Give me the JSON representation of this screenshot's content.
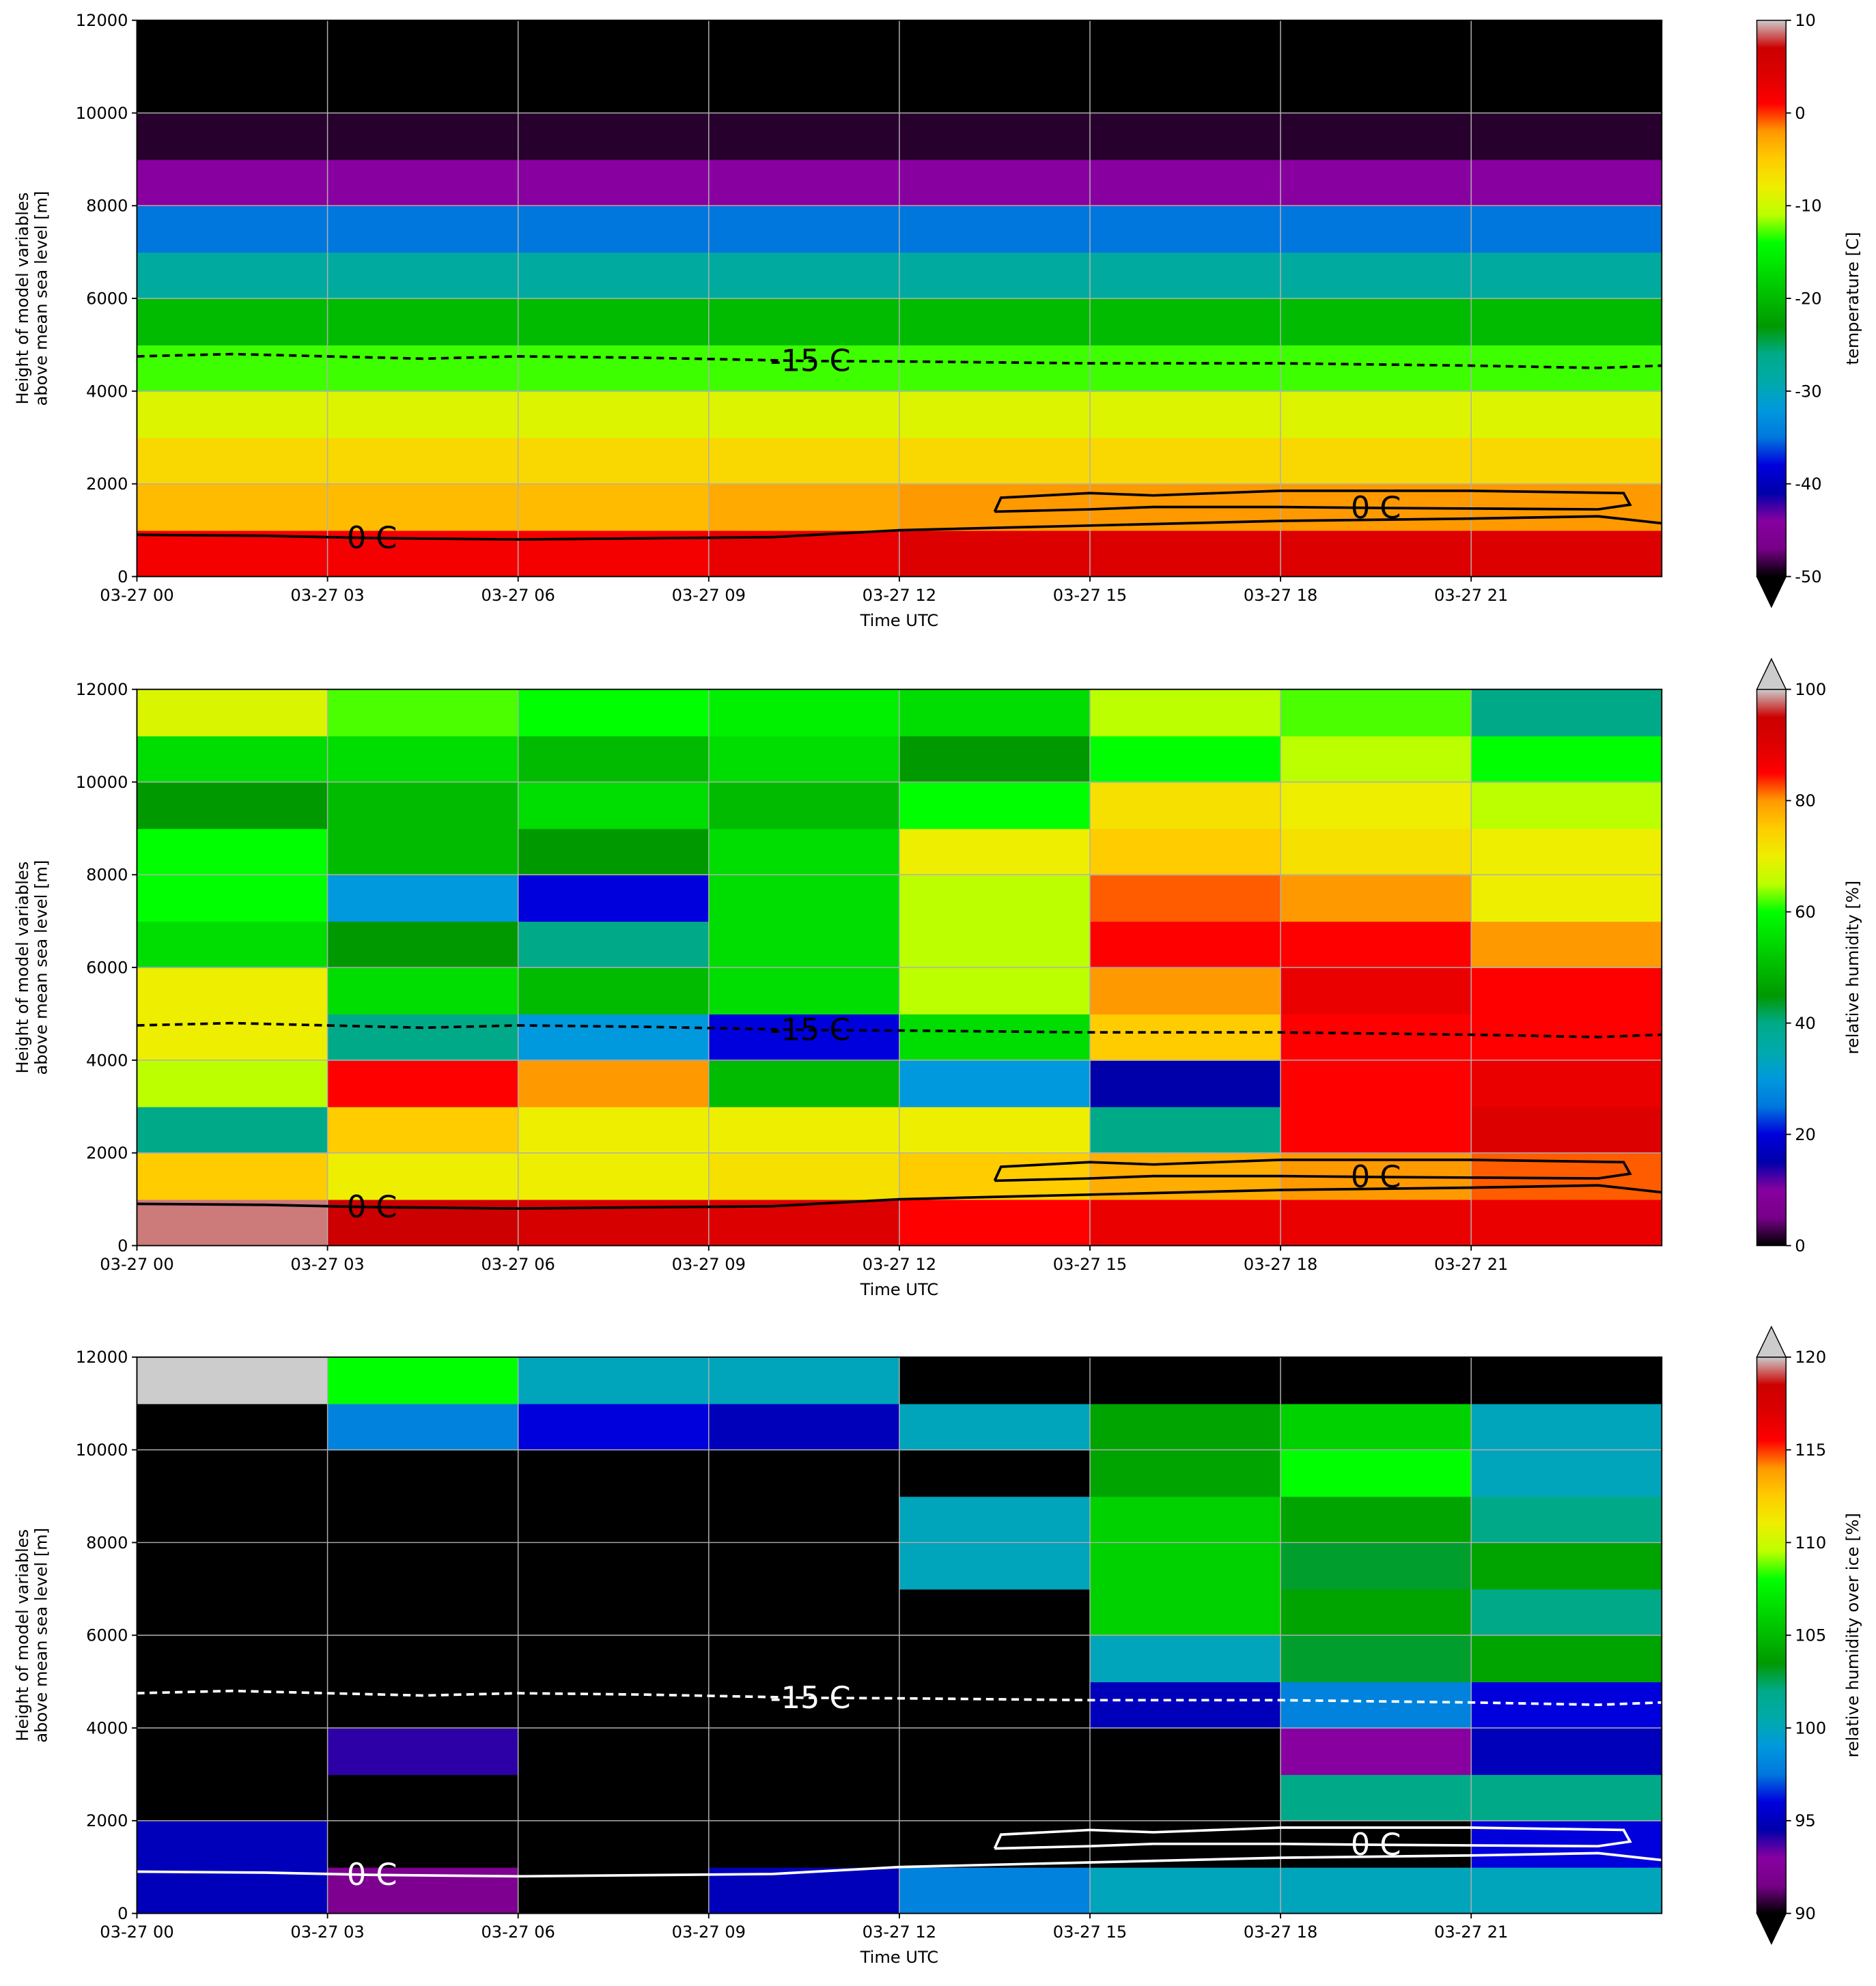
{
  "contours": [
    {
      "label": "-15 C",
      "style": "dashed",
      "x": [
        0,
        1.5,
        3,
        4.5,
        6,
        8,
        10.6,
        12,
        15,
        18,
        21,
        23,
        24
      ],
      "y": [
        4750,
        4800,
        4750,
        4700,
        4750,
        4720,
        4650,
        4640,
        4600,
        4600,
        4550,
        4500,
        4550
      ]
    },
    {
      "label": "0 C",
      "style": "solid",
      "x": [
        0,
        2,
        3.7,
        6,
        10,
        12,
        15,
        18,
        21,
        23,
        24
      ],
      "y": [
        900,
        880,
        830,
        800,
        850,
        1000,
        1100,
        1200,
        1250,
        1300,
        1150
      ]
    },
    {
      "label": "0 C",
      "style": "solid",
      "x": [
        13.5,
        13.6,
        15,
        16,
        18,
        21,
        23.4,
        23.5,
        23,
        19.5,
        18,
        16,
        15,
        13.5
      ],
      "y": [
        1400,
        1700,
        1800,
        1750,
        1850,
        1850,
        1800,
        1550,
        1450,
        1480,
        1500,
        1500,
        1450,
        1400
      ]
    }
  ],
  "colormap": [
    "#000000",
    "#770088",
    "#8800a0",
    "#0000aa",
    "#0000dd",
    "#0077dd",
    "#0099dd",
    "#00aaaa",
    "#00aa88",
    "#009900",
    "#00bb00",
    "#00dd00",
    "#00ff00",
    "#bbff00",
    "#eeee00",
    "#ffcc00",
    "#ff9900",
    "#ff0000",
    "#dd0000",
    "#cc0000",
    "#cccccc"
  ],
  "chart_data": [
    {
      "type": "heatmap",
      "xlabel": "Time UTC",
      "ylabel": [
        "Height of model variables",
        "above mean sea level [m]"
      ],
      "colorbar_label": "temperature [C]",
      "clim": [
        -50,
        10
      ],
      "cticks": [
        10,
        0,
        -10,
        -20,
        -30,
        -40,
        -50
      ],
      "under_color": "#000000",
      "contour_color": "#000000",
      "grid": true,
      "xlim": [
        0,
        24
      ],
      "ylim": [
        0,
        12000
      ],
      "yticks": [
        0,
        2000,
        4000,
        6000,
        8000,
        10000,
        12000
      ],
      "xticks": [
        {
          "value": 0,
          "label": "03-27 00"
        },
        {
          "value": 3,
          "label": "03-27 03"
        },
        {
          "value": 6,
          "label": "03-27 06"
        },
        {
          "value": 9,
          "label": "03-27 09"
        },
        {
          "value": 12,
          "label": "03-27 12"
        },
        {
          "value": 15,
          "label": "03-27 15"
        },
        {
          "value": 18,
          "label": "03-27 18"
        },
        {
          "value": 21,
          "label": "03-27 21"
        }
      ],
      "x_edges": [
        0,
        3,
        6,
        9,
        12,
        15,
        18,
        21,
        24
      ],
      "y_edges": [
        0,
        1000,
        2000,
        3000,
        4000,
        5000,
        6000,
        7000,
        8000,
        9000,
        10000,
        11000,
        12000
      ],
      "values": [
        [
          2,
          2,
          2,
          3,
          4,
          4,
          4,
          4
        ],
        [
          -4,
          -4,
          -4,
          -3,
          -2,
          -2,
          -2,
          -2
        ],
        [
          -6,
          -6,
          -6,
          -6,
          -6,
          -6,
          -6,
          -6
        ],
        [
          -9,
          -9,
          -9,
          -9,
          -9,
          -9,
          -9,
          -9
        ],
        [
          -13,
          -13,
          -13,
          -13,
          -13,
          -13,
          -13,
          -13
        ],
        [
          -20,
          -20,
          -20,
          -20,
          -20,
          -20,
          -20,
          -20
        ],
        [
          -28,
          -28,
          -28,
          -28,
          -28,
          -28,
          -28,
          -28
        ],
        [
          -35,
          -35,
          -35,
          -35,
          -35,
          -35,
          -35,
          -35
        ],
        [
          -44,
          -44,
          -44,
          -44,
          -44,
          -44,
          -44,
          -44
        ],
        [
          -49,
          -49,
          -49,
          -49,
          -49,
          -49,
          -49,
          -49
        ],
        [
          -56,
          -56,
          -56,
          -56,
          -56,
          -56,
          -56,
          -56
        ],
        [
          -58,
          -58,
          -58,
          -58,
          -58,
          -58,
          -58,
          -58
        ]
      ]
    },
    {
      "type": "heatmap",
      "xlabel": "Time UTC",
      "ylabel": [
        "Height of model variables",
        "above mean sea level [m]"
      ],
      "colorbar_label": "relative humidity [%]",
      "clim": [
        0,
        100
      ],
      "cticks": [
        0,
        20,
        40,
        60,
        80,
        100
      ],
      "over_color": "#cccccc",
      "contour_color": "#000000",
      "grid": true,
      "xlim": [
        0,
        24
      ],
      "ylim": [
        0,
        12000
      ],
      "yticks": [
        0,
        2000,
        4000,
        6000,
        8000,
        10000,
        12000
      ],
      "xticks": [
        {
          "value": 0,
          "label": "03-27 00"
        },
        {
          "value": 3,
          "label": "03-27 03"
        },
        {
          "value": 6,
          "label": "03-27 06"
        },
        {
          "value": 9,
          "label": "03-27 09"
        },
        {
          "value": 12,
          "label": "03-27 12"
        },
        {
          "value": 15,
          "label": "03-27 15"
        },
        {
          "value": 18,
          "label": "03-27 18"
        },
        {
          "value": 21,
          "label": "03-27 21"
        }
      ],
      "x_edges": [
        0,
        3,
        6,
        9,
        12,
        15,
        18,
        21,
        24
      ],
      "y_edges": [
        0,
        1000,
        2000,
        3000,
        4000,
        5000,
        6000,
        7000,
        8000,
        9000,
        10000,
        11000,
        12000
      ],
      "values": [
        [
          98,
          95,
          92,
          90,
          85,
          88,
          88,
          88
        ],
        [
          75,
          70,
          70,
          72,
          75,
          78,
          80,
          82
        ],
        [
          40,
          75,
          70,
          70,
          70,
          40,
          85,
          90
        ],
        [
          65,
          85,
          80,
          50,
          30,
          15,
          85,
          88
        ],
        [
          70,
          40,
          30,
          20,
          55,
          75,
          85,
          85
        ],
        [
          70,
          55,
          50,
          55,
          65,
          80,
          88,
          85
        ],
        [
          55,
          45,
          40,
          55,
          65,
          85,
          85,
          80
        ],
        [
          60,
          30,
          20,
          55,
          65,
          82,
          80,
          70
        ],
        [
          60,
          50,
          45,
          55,
          70,
          75,
          72,
          70
        ],
        [
          45,
          50,
          55,
          50,
          60,
          72,
          70,
          65
        ],
        [
          55,
          55,
          50,
          55,
          45,
          60,
          65,
          60
        ],
        [
          68,
          62,
          60,
          58,
          55,
          65,
          62,
          40
        ]
      ]
    },
    {
      "type": "heatmap",
      "xlabel": "Time UTC",
      "ylabel": [
        "Height of model variables",
        "above mean sea level [m]"
      ],
      "colorbar_label": "relative humidity over ice [%]",
      "clim": [
        90,
        120
      ],
      "cticks": [
        90,
        95,
        100,
        105,
        110,
        115,
        120
      ],
      "under_color": "#000000",
      "over_color": "#cccccc",
      "contour_color": "#ffffff",
      "grid": true,
      "xlim": [
        0,
        24
      ],
      "ylim": [
        0,
        12000
      ],
      "yticks": [
        0,
        2000,
        4000,
        6000,
        8000,
        10000,
        12000
      ],
      "xticks": [
        {
          "value": 0,
          "label": "03-27 00"
        },
        {
          "value": 3,
          "label": "03-27 03"
        },
        {
          "value": 6,
          "label": "03-27 06"
        },
        {
          "value": 9,
          "label": "03-27 09"
        },
        {
          "value": 12,
          "label": "03-27 12"
        },
        {
          "value": 15,
          "label": "03-27 15"
        },
        {
          "value": 18,
          "label": "03-27 18"
        },
        {
          "value": 21,
          "label": "03-27 21"
        }
      ],
      "x_edges": [
        0,
        3,
        6,
        9,
        12,
        15,
        18,
        21,
        24
      ],
      "y_edges": [
        0,
        1000,
        2000,
        3000,
        4000,
        5000,
        6000,
        7000,
        8000,
        9000,
        10000,
        11000,
        12000
      ],
      "values": [
        [
          95,
          92,
          90,
          95,
          98,
          100,
          100,
          100
        ],
        [
          95,
          85,
          85,
          85,
          85,
          85,
          85,
          96
        ],
        [
          85,
          85,
          85,
          85,
          85,
          85,
          102,
          102
        ],
        [
          85,
          94,
          85,
          85,
          85,
          85,
          93,
          95
        ],
        [
          85,
          85,
          85,
          85,
          85,
          95,
          98,
          96
        ],
        [
          85,
          85,
          85,
          85,
          85,
          100,
          103,
          104
        ],
        [
          85,
          85,
          85,
          85,
          85,
          106,
          104,
          102
        ],
        [
          85,
          85,
          85,
          85,
          100,
          106,
          103,
          104
        ],
        [
          85,
          85,
          85,
          85,
          100,
          106,
          104,
          102
        ],
        [
          85,
          85,
          85,
          85,
          85,
          104,
          108,
          100
        ],
        [
          85,
          98,
          96,
          95,
          100,
          104,
          106,
          100
        ],
        [
          121,
          108,
          100,
          100,
          85,
          85,
          85,
          85
        ]
      ]
    }
  ]
}
